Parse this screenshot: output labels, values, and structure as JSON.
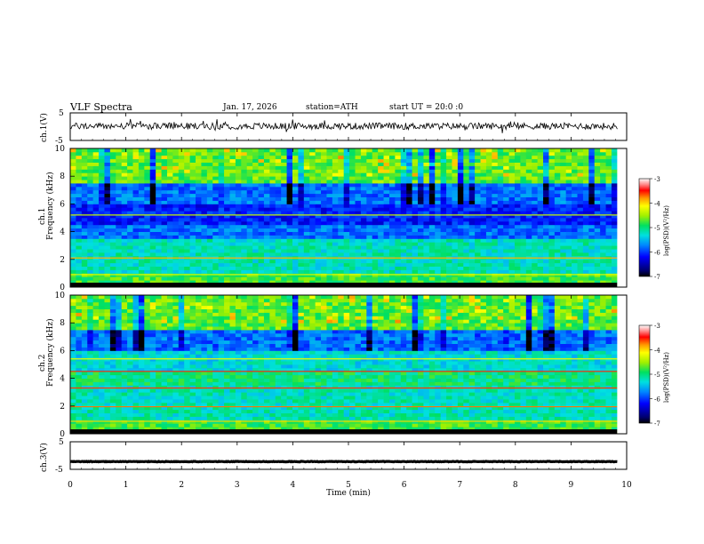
{
  "header": {
    "title": "VLF  Spectra",
    "date": "Jan. 17, 2026",
    "station": "station=ATH",
    "start": "start  UT  =   20:0  :0"
  },
  "chart_data": [
    {
      "type": "line",
      "name": "ch1-waveform",
      "ylabel": "ch.1(V)",
      "ylim": [
        -5,
        5
      ],
      "y_ticks": [
        "5",
        "-5"
      ],
      "xlim": [
        0,
        10
      ],
      "baseline": 0.2,
      "noise_amplitude": 1.2
    },
    {
      "type": "heatmap",
      "name": "ch1-spectrogram",
      "ylabel_channel": "ch.1",
      "ylabel": "Frequency  (kHz)",
      "ylim": [
        0,
        10
      ],
      "y_ticks": [
        "0",
        "2",
        "4",
        "6",
        "8",
        "10"
      ],
      "xlim": [
        0,
        9.83
      ],
      "colorbar_label": "log(PSD)(V²/Hz)",
      "colorbar_ticks": [
        "-3",
        "-4",
        "-5",
        "-6",
        "-7"
      ],
      "colorbar_range": [
        -7,
        -3
      ]
    },
    {
      "type": "heatmap",
      "name": "ch2-spectrogram",
      "ylabel_channel": "ch.2",
      "ylabel": "Frequency  (kHz)",
      "ylim": [
        0,
        10
      ],
      "y_ticks": [
        "0",
        "2",
        "4",
        "6",
        "8",
        "10"
      ],
      "xlim": [
        0,
        9.83
      ],
      "colorbar_label": "log(PSD)(V²/Hz)",
      "colorbar_ticks": [
        "-3",
        "-4",
        "-5",
        "-6",
        "-7"
      ],
      "colorbar_range": [
        -7,
        -3
      ]
    },
    {
      "type": "line",
      "name": "ch3-waveform",
      "ylabel": "ch.3(V)",
      "ylim": [
        -5,
        5
      ],
      "y_ticks": [
        "5",
        "-5"
      ],
      "xlim": [
        0,
        10
      ],
      "baseline": -2.2,
      "noise_amplitude": 0.1
    }
  ],
  "x_axis": {
    "label": "Time  (min)",
    "ticks": [
      "0",
      "1",
      "2",
      "3",
      "4",
      "5",
      "6",
      "7",
      "8",
      "9",
      "10"
    ],
    "range": [
      0,
      10
    ]
  }
}
